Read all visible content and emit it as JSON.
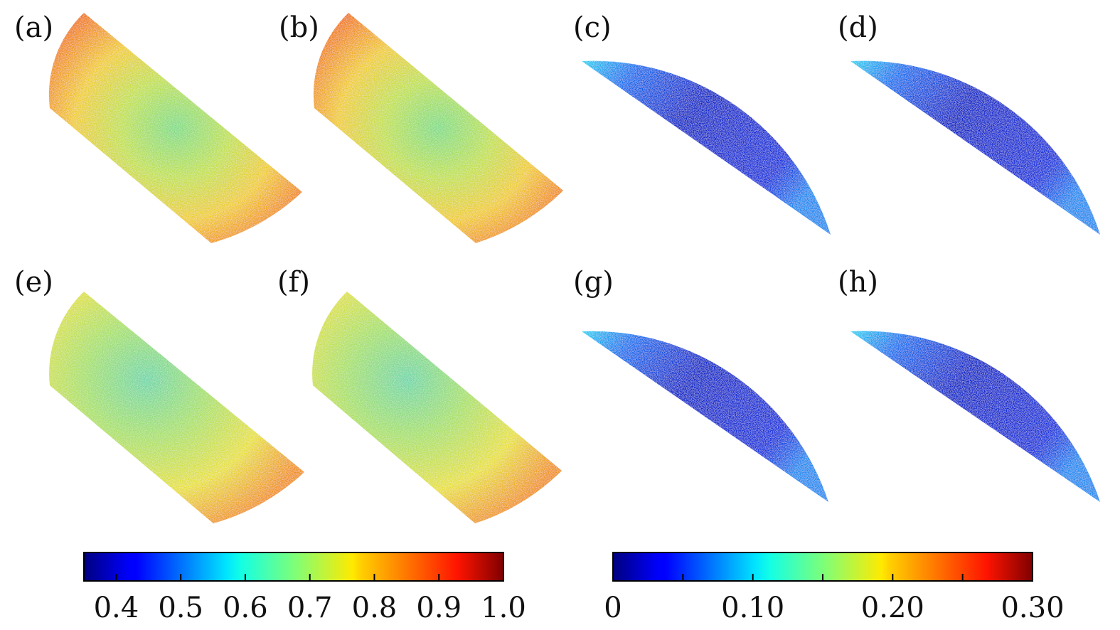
{
  "panels": [
    {
      "id": "a",
      "label": "(a)",
      "shape": "band",
      "map": "first",
      "tone": "warm"
    },
    {
      "id": "b",
      "label": "(b)",
      "shape": "band",
      "map": "first",
      "tone": "warm"
    },
    {
      "id": "c",
      "label": "(c)",
      "shape": "half-disk",
      "map": "second",
      "tone": "cool"
    },
    {
      "id": "d",
      "label": "(d)",
      "shape": "half-disk",
      "map": "second",
      "tone": "cool"
    },
    {
      "id": "e",
      "label": "(e)",
      "shape": "band",
      "map": "first",
      "tone": "mild"
    },
    {
      "id": "f",
      "label": "(f)",
      "shape": "band",
      "map": "first",
      "tone": "mild"
    },
    {
      "id": "g",
      "label": "(g)",
      "shape": "half-disk",
      "map": "second",
      "tone": "cool"
    },
    {
      "id": "h",
      "label": "(h)",
      "shape": "half-disk",
      "map": "second",
      "tone": "cool"
    }
  ],
  "colorbars": [
    {
      "id": "first",
      "colormap": "jet",
      "min": 0.35,
      "max": 1.0,
      "ticks": [
        {
          "value": 0.4,
          "label": "0.4"
        },
        {
          "value": 0.5,
          "label": "0.5"
        },
        {
          "value": 0.6,
          "label": "0.6"
        },
        {
          "value": 0.7,
          "label": "0.7"
        },
        {
          "value": 0.8,
          "label": "0.8"
        },
        {
          "value": 0.9,
          "label": "0.9"
        },
        {
          "value": 1.0,
          "label": "1.0"
        }
      ]
    },
    {
      "id": "second",
      "colormap": "jet",
      "min": 0.0,
      "max": 0.3,
      "ticks": [
        {
          "value": 0.0,
          "label": "0"
        },
        {
          "value": 0.05,
          "label": ""
        },
        {
          "value": 0.1,
          "label": "0.10"
        },
        {
          "value": 0.15,
          "label": ""
        },
        {
          "value": 0.2,
          "label": "0.20"
        },
        {
          "value": 0.25,
          "label": ""
        },
        {
          "value": 0.3,
          "label": "0.30"
        }
      ]
    }
  ],
  "colors": {
    "warm_edge": "#f07a1a",
    "warm_mid": "#ddd93a",
    "warm_center": "#8ed87a",
    "mild_edge": "#f09a2a",
    "mild_mid": "#e6e23a",
    "mild_center": "#7ad8a0",
    "cool_deep": "#0616c8",
    "cool_mid": "#0a3ae8",
    "cool_light": "#1ec8f0"
  }
}
